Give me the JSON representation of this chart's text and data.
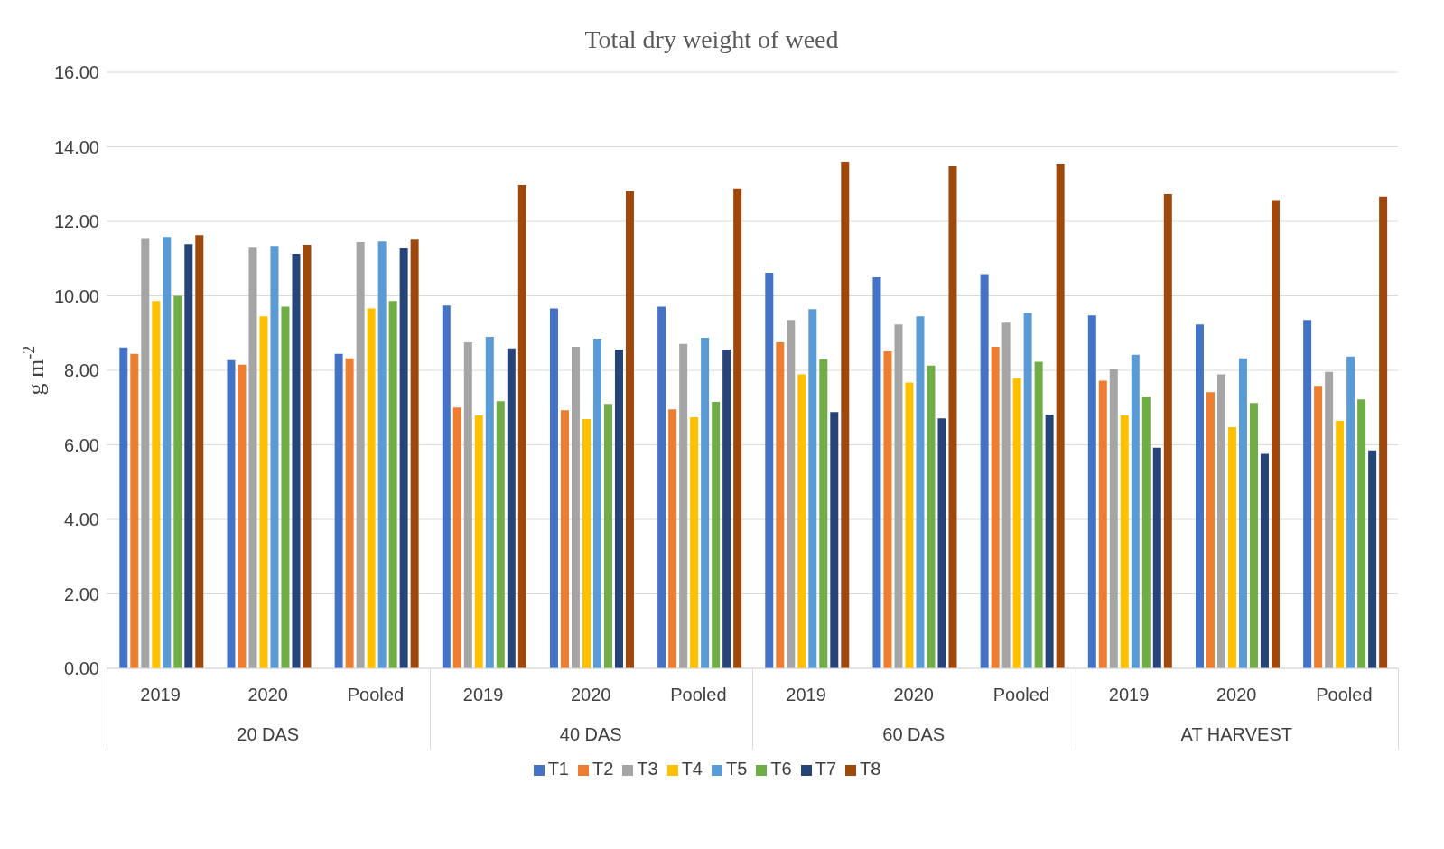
{
  "chart_data": {
    "type": "bar",
    "title": "Total dry weight of weed",
    "ylabel": "g m$^{-2}$",
    "categories": [
      "2019",
      "2020",
      "Pooled",
      "2019",
      "2020",
      "Pooled",
      "2019",
      "2020",
      "Pooled",
      "2019",
      "2020",
      "Pooled"
    ],
    "annotations": [
      "20 DAS",
      "40 DAS",
      "60 DAS",
      "AT HARVEST"
    ],
    "series": [
      {
        "name": "T1",
        "color": "#4472c4",
        "values": [
          8.61,
          8.27,
          8.44,
          9.74,
          9.66,
          9.71,
          10.62,
          10.5,
          10.58,
          9.47,
          9.23,
          9.35
        ]
      },
      {
        "name": "T2",
        "color": "#ed7d31",
        "values": [
          8.44,
          8.15,
          8.32,
          7.0,
          6.93,
          6.95,
          8.75,
          8.51,
          8.63,
          7.72,
          7.41,
          7.58
        ]
      },
      {
        "name": "T3",
        "color": "#a5a5a5",
        "values": [
          11.53,
          11.29,
          11.44,
          8.75,
          8.63,
          8.71,
          9.35,
          9.23,
          9.28,
          8.03,
          7.89,
          7.96
        ]
      },
      {
        "name": "T4",
        "color": "#ffc000",
        "values": [
          9.86,
          9.45,
          9.66,
          6.79,
          6.69,
          6.74,
          7.89,
          7.67,
          7.79,
          6.79,
          6.47,
          6.64
        ]
      },
      {
        "name": "T5",
        "color": "#5b9bd5",
        "values": [
          11.58,
          11.34,
          11.46,
          8.9,
          8.85,
          8.87,
          9.64,
          9.45,
          9.54,
          8.42,
          8.32,
          8.37
        ]
      },
      {
        "name": "T6",
        "color": "#70ad47",
        "values": [
          10.0,
          9.71,
          9.86,
          7.17,
          7.1,
          7.15,
          8.3,
          8.13,
          8.23,
          7.29,
          7.12,
          7.22
        ]
      },
      {
        "name": "T7",
        "color": "#264478",
        "values": [
          11.39,
          11.13,
          11.27,
          8.59,
          8.56,
          8.56,
          6.88,
          6.71,
          6.81,
          5.92,
          5.76,
          5.85
        ]
      },
      {
        "name": "T8",
        "color": "#9e480e",
        "values": [
          11.63,
          11.37,
          11.51,
          12.97,
          12.81,
          12.88,
          13.6,
          13.48,
          13.53,
          12.73,
          12.57,
          12.66
        ]
      }
    ],
    "ylim": [
      0,
      16
    ],
    "yticks": [
      {
        "value": 0,
        "label": "0.00"
      },
      {
        "value": 2,
        "label": "2.00"
      },
      {
        "value": 4,
        "label": "4.00"
      },
      {
        "value": 6,
        "label": "6.00"
      },
      {
        "value": 8,
        "label": "8.00"
      },
      {
        "value": 10,
        "label": "10.00"
      },
      {
        "value": 12,
        "label": "12.00"
      },
      {
        "value": 14,
        "label": "14.00"
      },
      {
        "value": 16,
        "label": "16.00"
      }
    ],
    "grid": "y",
    "legend": "bottom"
  }
}
